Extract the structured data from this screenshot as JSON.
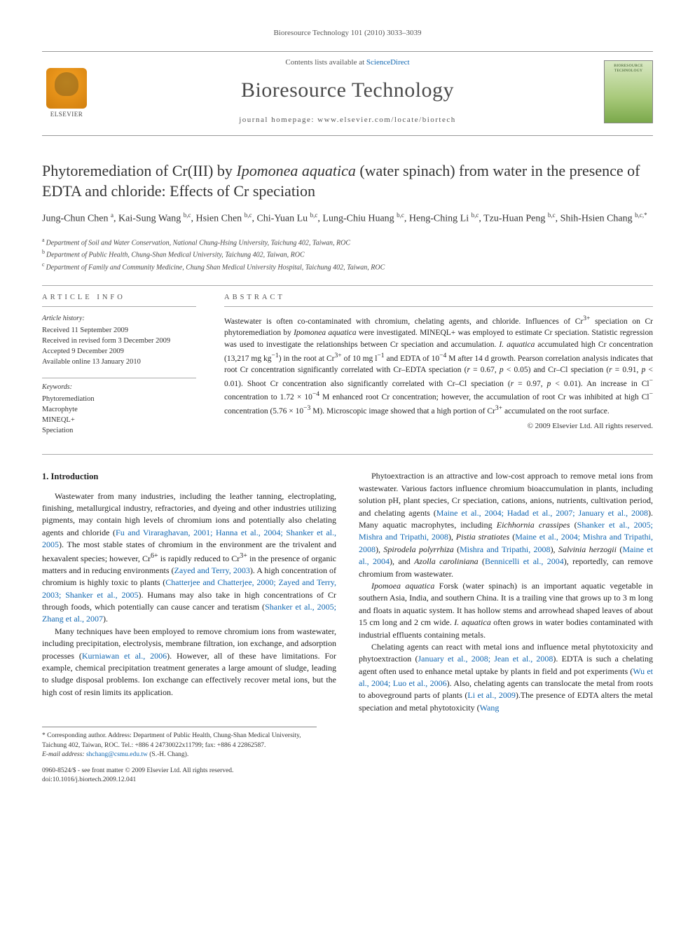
{
  "running_head": "Bioresource Technology 101 (2010) 3033–3039",
  "masthead": {
    "publisher": "ELSEVIER",
    "contents_prefix": "Contents lists available at ",
    "contents_link": "ScienceDirect",
    "journal": "Bioresource Technology",
    "homepage_prefix": "journal homepage: ",
    "homepage_url": "www.elsevier.com/locate/biortech",
    "cover_label": "BIORESOURCE TECHNOLOGY"
  },
  "title_html": "Phytoremediation of Cr(III) by <em>Ipomonea aquatica</em> (water spinach) from water in the presence of EDTA and chloride: Effects of Cr speciation",
  "authors_html": "Jung-Chun Chen <sup>a</sup>, Kai-Sung Wang <sup>b,c</sup>, Hsien Chen <sup>b,c</sup>, Chi-Yuan Lu <sup>b,c</sup>, Lung-Chiu Huang <sup>b,c</sup>, Heng-Ching Li <sup>b,c</sup>, Tzu-Huan Peng <sup>b,c</sup>, Shih-Hsien Chang <sup>b,c,*</sup>",
  "affiliations": [
    {
      "sup": "a",
      "text": "Department of Soil and Water Conservation, National Chung-Hsing University, Taichung 402, Taiwan, ROC"
    },
    {
      "sup": "b",
      "text": "Department of Public Health, Chung-Shan Medical University, Taichung 402, Taiwan, ROC"
    },
    {
      "sup": "c",
      "text": "Department of Family and Community Medicine, Chung Shan Medical University Hospital, Taichung 402, Taiwan, ROC"
    }
  ],
  "info": {
    "article_info_head": "ARTICLE INFO",
    "abstract_head": "ABSTRACT",
    "history_label": "Article history:",
    "history": [
      "Received 11 September 2009",
      "Received in revised form 3 December 2009",
      "Accepted 9 December 2009",
      "Available online 13 January 2010"
    ],
    "keywords_label": "Keywords:",
    "keywords": [
      "Phytoremediation",
      "Macrophyte",
      "MINEQL+",
      "Speciation"
    ]
  },
  "abstract_html": "Wastewater is often co-contaminated with chromium, chelating agents, and chloride. Influences of Cr<sup>3+</sup> speciation on Cr phytoremediation by <em>Ipomonea aquatica</em> were investigated. MINEQL+ was employed to estimate Cr speciation. Statistic regression was used to investigate the relationships between Cr speciation and accumulation. <em>I. aquatica</em> accumulated high Cr concentration (13,217 mg kg<sup>−1</sup>) in the root at Cr<sup>3+</sup> of 10 mg l<sup>−1</sup> and EDTA of 10<sup>−4</sup> M after 14 d growth. Pearson correlation analysis indicates that root Cr concentration significantly correlated with Cr–EDTA speciation (<em>r</em> = 0.67, <em>p</em> &lt; 0.05) and Cr–Cl speciation (<em>r</em> = 0.91, <em>p</em> &lt; 0.01). Shoot Cr concentration also significantly correlated with Cr–Cl speciation (<em>r</em> = 0.97, <em>p</em> &lt; 0.01). An increase in Cl<sup>−</sup> concentration to 1.72 × 10<sup>−4</sup> M enhanced root Cr concentration; however, the accumulation of root Cr was inhibited at high Cl<sup>−</sup> concentration (5.76 × 10<sup>−3</sup> M). Microscopic image showed that a high portion of Cr<sup>3+</sup> accumulated on the root surface.",
  "copyright": "© 2009 Elsevier Ltd. All rights reserved.",
  "section_head": "1. Introduction",
  "p1_html": "Wastewater from many industries, including the leather tanning, electroplating, finishing, metallurgical industry, refractories, and dyeing and other industries utilizing pigments, may contain high levels of chromium ions and potentially also chelating agents and chloride (<span class=\"cite\">Fu and Viraraghavan, 2001; Hanna et al., 2004; Shanker et al., 2005</span>). The most stable states of chromium in the environment are the trivalent and hexavalent species; however, Cr<sup>6+</sup> is rapidly reduced to Cr<sup>3+</sup> in the presence of organic matters and in reducing environments (<span class=\"cite\">Zayed and Terry, 2003</span>). A high concentration of chromium is highly toxic to plants (<span class=\"cite\">Chatterjee and Chatterjee, 2000; Zayed and Terry, 2003; Shanker et al., 2005</span>). Humans may also take in high concentrations of Cr through foods, which potentially can cause cancer and teratism (<span class=\"cite\">Shanker et al., 2005; Zhang et al., 2007</span>).",
  "p2_html": "Many techniques have been employed to remove chromium ions from wastewater, including precipitation, electrolysis, membrane filtration, ion exchange, and adsorption processes (<span class=\"cite\">Kurniawan et al., 2006</span>). However, all of these have limitations. For example, chemical precipitation treatment generates a large amount of sludge, leading to sludge disposal problems. Ion exchange can effectively recover metal ions, but the high cost of resin limits its application.",
  "p3_html": "Phytoextraction is an attractive and low-cost approach to remove metal ions from wastewater. Various factors influence chromium bioaccumulation in plants, including solution pH, plant species, Cr speciation, cations, anions, nutrients, cultivation period, and chelating agents (<span class=\"cite\">Maine et al., 2004; Hadad et al., 2007; January et al., 2008</span>). Many aquatic macrophytes, including <em class=\"sp\">Eichhornia crassipes</em> (<span class=\"cite\">Shanker et al., 2005; Mishra and Tripathi, 2008</span>), <em class=\"sp\">Pistia stratiotes</em> (<span class=\"cite\">Maine et al., 2004; Mishra and Tripathi, 2008</span>), <em class=\"sp\">Spirodela polyrrhiza</em> (<span class=\"cite\">Mishra and Tripathi, 2008</span>), <em class=\"sp\">Salvinia herzogii</em> (<span class=\"cite\">Maine et al., 2004</span>), and <em class=\"sp\">Azolla caroliniana</em> (<span class=\"cite\">Bennicelli et al., 2004</span>), reportedly, can remove chromium from wastewater.",
  "p4_html": "<em class=\"sp\">Ipomoea aquatica</em> Forsk (water spinach) is an important aquatic vegetable in southern Asia, India, and southern China. It is a trailing vine that grows up to 3 m long and floats in aquatic system. It has hollow stems and arrowhead shaped leaves of about 15 cm long and 2 cm wide. <em class=\"sp\">I. aquatica</em> often grows in water bodies contaminated with industrial effluents containing metals.",
  "p5_html": "Chelating agents can react with metal ions and influence metal phytotoxicity and phytoextraction (<span class=\"cite\">January et al., 2008; Jean et al., 2008</span>). EDTA is such a chelating agent often used to enhance metal uptake by plants in field and pot experiments (<span class=\"cite\">Wu et al., 2004; Luo et al., 2006</span>). Also, chelating agents can translocate the metal from roots to aboveground parts of plants (<span class=\"cite\">Li et al., 2009</span>).The presence of EDTA alters the metal speciation and metal phytotoxicity (<span class=\"cite\">Wang</span>",
  "footnotes": {
    "corr": "* Corresponding author. Address: Department of Public Health, Chung-Shan Medical University, Taichung 402, Taiwan, ROC. Tel.: +886 4 24730022x11799; fax: +886 4 22862587.",
    "email_label": "E-mail address: ",
    "email": "shchang@csmu.edu.tw",
    "email_suffix": " (S.-H. Chang)."
  },
  "footer": {
    "left_line1": "0960-8524/$ - see front matter © 2009 Elsevier Ltd. All rights reserved.",
    "left_line2": "doi:10.1016/j.biortech.2009.12.041"
  },
  "colors": {
    "link": "#1167b1",
    "text": "#333333",
    "rule": "#aaaaaa"
  }
}
